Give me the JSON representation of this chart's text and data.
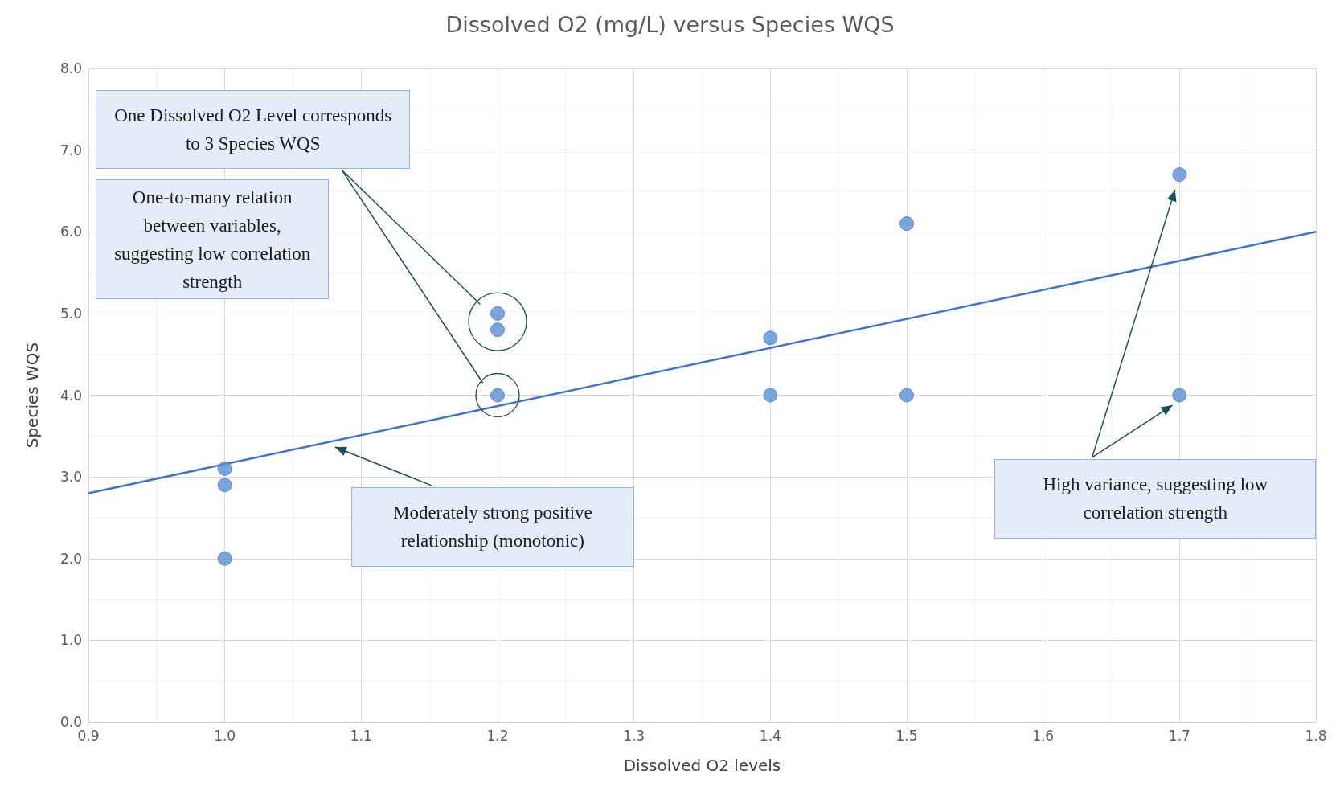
{
  "chart_data": {
    "type": "scatter",
    "title": "Dissolved O2 (mg/L) versus Species WQS",
    "xlabel": "Dissolved O2 levels",
    "ylabel": "Species WQS",
    "series": [
      {
        "color": "#5b8fd6",
        "marker": "circle",
        "x": [
          1.0,
          1.0,
          1.0,
          1.2,
          1.2,
          1.2,
          1.4,
          1.4,
          1.5,
          1.5,
          1.7,
          1.7
        ],
        "values": [
          3.1,
          2.9,
          2.0,
          5.0,
          4.8,
          4.0,
          4.7,
          4.0,
          6.1,
          4.0,
          6.7,
          4.0
        ]
      },
      {
        "type": "line",
        "color": "#4472c4",
        "x": [
          0.9,
          1.8
        ],
        "values": [
          2.8,
          6.0
        ]
      }
    ],
    "xlim": [
      0.9,
      1.8
    ],
    "ylim": [
      0,
      8
    ],
    "xticks": [
      0.9,
      {
        "value": 1,
        "label": "1.0"
      },
      1.1,
      1.2,
      1.3,
      1.4,
      1.5,
      1.6,
      1.7,
      1.8
    ],
    "yticks": [
      {
        "value": 0,
        "label": "0.0"
      },
      {
        "value": 1,
        "label": "1.0"
      },
      {
        "value": 2,
        "label": "2.0"
      },
      {
        "value": 3,
        "label": "3.0"
      },
      {
        "value": 4,
        "label": "4.0"
      },
      {
        "value": 5,
        "label": "5.0"
      },
      {
        "value": 6,
        "label": "6.0"
      },
      {
        "value": 7,
        "label": "7.0"
      },
      {
        "value": 8,
        "label": "8.0"
      }
    ],
    "grid": true,
    "annotations": [
      "One Dissolved O2 Level corresponds to 3 Species WQS",
      "One-to-many relation between variables, suggesting low correlation strength",
      "Moderately strong positive relationship (monotonic)",
      "High variance, suggesting low correlation strength"
    ]
  }
}
